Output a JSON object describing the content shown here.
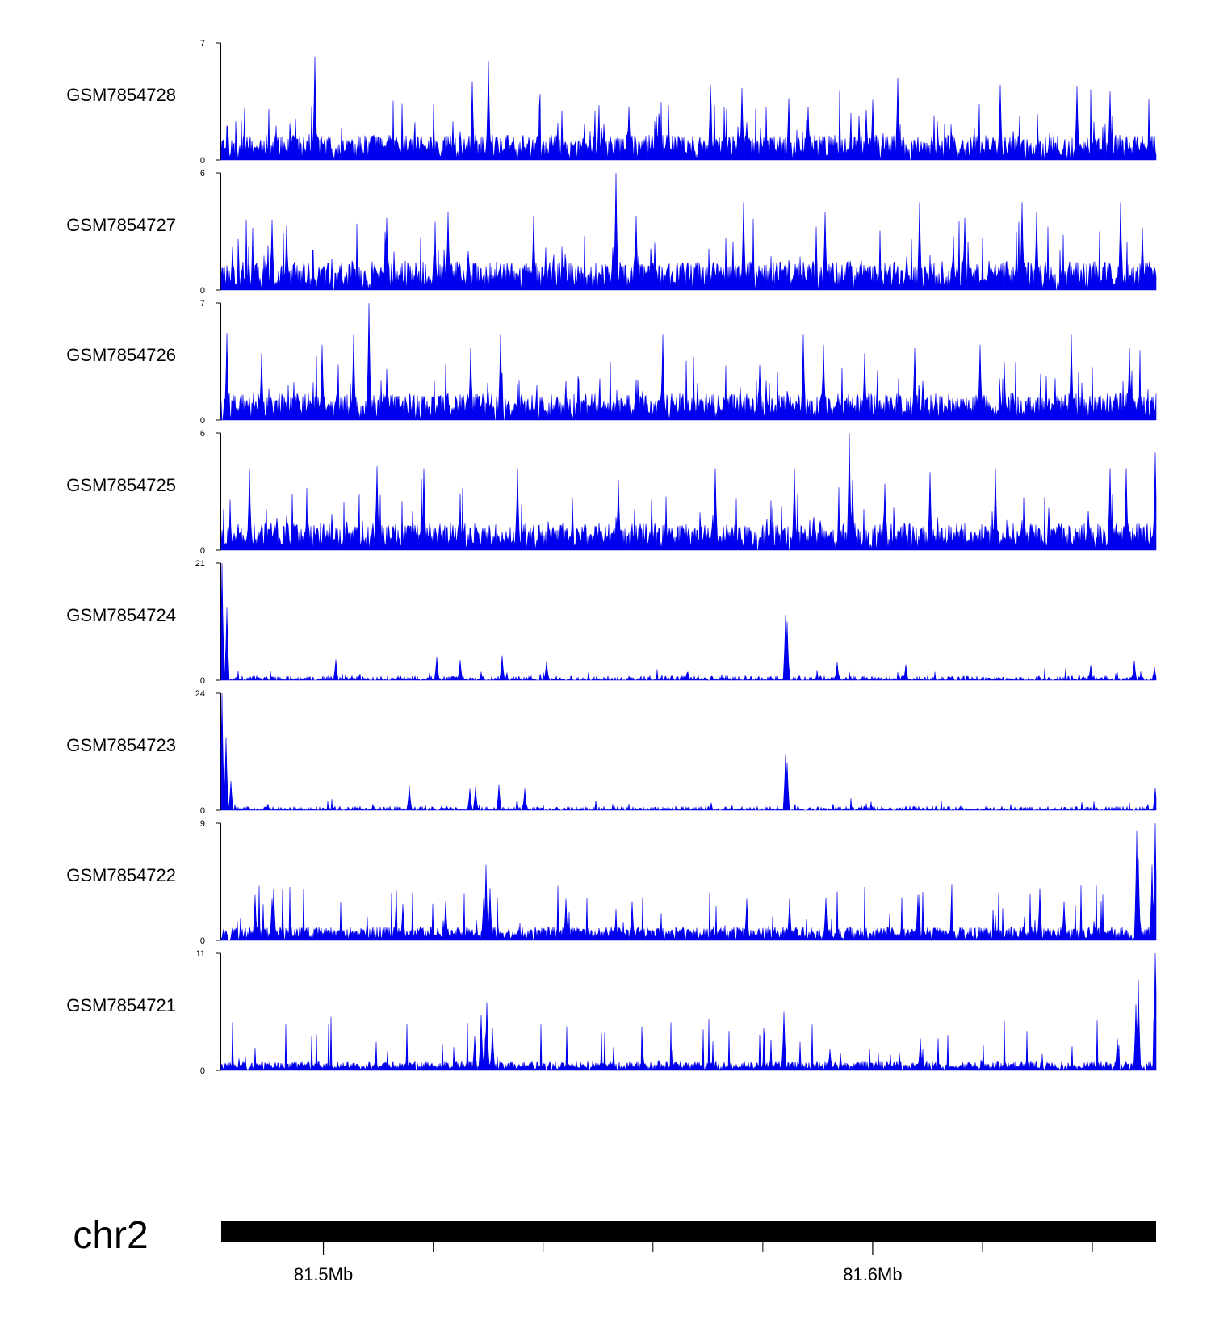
{
  "chart_data": {
    "type": "area",
    "title": "",
    "track_color": "#0000ee",
    "chromosome": "chr2",
    "x_range_mb": [
      81.4814,
      81.6516
    ],
    "x_ticks": [
      {
        "value": 81.5,
        "label": "81.5Mb"
      },
      {
        "value": 81.52
      },
      {
        "value": 81.54
      },
      {
        "value": 81.56
      },
      {
        "value": 81.58
      },
      {
        "value": 81.6,
        "label": "81.6Mb"
      },
      {
        "value": 81.62
      },
      {
        "value": 81.64
      }
    ],
    "series": [
      {
        "name": "GSM7854728",
        "ymax": 7,
        "ymin": 0,
        "profile": "noise",
        "base": 1.3,
        "seed": 11,
        "peaks": [
          [
            81.4985,
            6.2
          ],
          [
            81.5301,
            5.9
          ],
          [
            81.5271,
            4.7
          ],
          [
            81.5556,
            3.2
          ],
          [
            81.5606,
            2.6
          ],
          [
            81.5705,
            4.5
          ],
          [
            81.5762,
            4.3
          ],
          [
            81.5847,
            3.7
          ],
          [
            81.5882,
            3.2
          ],
          [
            81.5989,
            3.0
          ],
          [
            81.6,
            3.6
          ],
          [
            81.6046,
            4.9
          ],
          [
            81.6232,
            4.5
          ],
          [
            81.6372,
            4.4
          ],
          [
            81.6432,
            4.1
          ]
        ]
      },
      {
        "name": "GSM7854727",
        "ymax": 6,
        "ymin": 0,
        "profile": "noise",
        "base": 1.3,
        "seed": 23,
        "peaks": [
          [
            81.4835,
            2.2
          ],
          [
            81.4907,
            3.6
          ],
          [
            81.4933,
            3.3
          ],
          [
            81.5116,
            3.7
          ],
          [
            81.5227,
            4.0
          ],
          [
            81.5383,
            3.8
          ],
          [
            81.5533,
            6.0
          ],
          [
            81.5569,
            3.8
          ],
          [
            81.5765,
            4.5
          ],
          [
            81.5914,
            4.0
          ],
          [
            81.6086,
            4.5
          ],
          [
            81.6168,
            3.7
          ],
          [
            81.6272,
            4.5
          ],
          [
            81.6299,
            4.0
          ],
          [
            81.6452,
            4.5
          ],
          [
            81.6491,
            3.2
          ]
        ]
      },
      {
        "name": "GSM7854726",
        "ymax": 7,
        "ymin": 0,
        "profile": "noise",
        "base": 1.4,
        "seed": 37,
        "peaks": [
          [
            81.4825,
            5.2
          ],
          [
            81.4887,
            4.0
          ],
          [
            81.4998,
            4.5
          ],
          [
            81.5055,
            5.1
          ],
          [
            81.5083,
            7.0
          ],
          [
            81.5268,
            4.3
          ],
          [
            81.5323,
            5.1
          ],
          [
            81.5618,
            5.1
          ],
          [
            81.5794,
            3.3
          ],
          [
            81.5873,
            5.1
          ],
          [
            81.5911,
            4.5
          ],
          [
            81.5986,
            4.0
          ],
          [
            81.6076,
            4.3
          ],
          [
            81.6196,
            4.5
          ],
          [
            81.6362,
            5.1
          ],
          [
            81.6467,
            4.3
          ]
        ]
      },
      {
        "name": "GSM7854725",
        "ymax": 6,
        "ymin": 0,
        "profile": "noise",
        "base": 1.2,
        "seed": 53,
        "peaks": [
          [
            81.4866,
            4.2
          ],
          [
            81.5098,
            4.3
          ],
          [
            81.5183,
            4.2
          ],
          [
            81.5354,
            4.2
          ],
          [
            81.5537,
            3.6
          ],
          [
            81.5714,
            4.2
          ],
          [
            81.5858,
            4.2
          ],
          [
            81.5957,
            6.0
          ],
          [
            81.5964,
            3.6
          ],
          [
            81.6022,
            3.4
          ],
          [
            81.6105,
            4.0
          ],
          [
            81.6224,
            4.2
          ],
          [
            81.6432,
            4.2
          ],
          [
            81.6461,
            4.2
          ],
          [
            81.6514,
            5.0
          ]
        ]
      },
      {
        "name": "GSM7854724",
        "ymax": 21,
        "ymin": 0,
        "profile": "low",
        "base": 0.8,
        "seed": 71,
        "peaks": [
          [
            81.4816,
            21.0
          ],
          [
            81.4824,
            13.0
          ],
          [
            81.5023,
            3.7
          ],
          [
            81.5207,
            4.2
          ],
          [
            81.5249,
            3.6
          ],
          [
            81.5325,
            4.4
          ],
          [
            81.5406,
            3.4
          ],
          [
            81.5841,
            11.7
          ],
          [
            81.5844,
            10.5
          ],
          [
            81.5936,
            3.2
          ],
          [
            81.6061,
            2.8
          ],
          [
            81.6397,
            2.7
          ],
          [
            81.6477,
            3.5
          ],
          [
            81.6513,
            2.3
          ]
        ]
      },
      {
        "name": "GSM7854723",
        "ymax": 24,
        "ymin": 0,
        "profile": "low",
        "base": 0.8,
        "seed": 89,
        "peaks": [
          [
            81.4816,
            24.0
          ],
          [
            81.4823,
            15.0
          ],
          [
            81.4832,
            6.0
          ],
          [
            81.5156,
            5.0
          ],
          [
            81.5267,
            4.4
          ],
          [
            81.5277,
            4.8
          ],
          [
            81.5319,
            5.2
          ],
          [
            81.5366,
            4.4
          ],
          [
            81.5841,
            11.5
          ],
          [
            81.5845,
            9.8
          ],
          [
            81.6514,
            4.5
          ]
        ]
      },
      {
        "name": "GSM7854722",
        "ymax": 9,
        "ymin": 0,
        "profile": "noise",
        "base": 0.9,
        "seed": 97,
        "peaks": [
          [
            81.4875,
            3.5
          ],
          [
            81.4906,
            3.2
          ],
          [
            81.4909,
            4.0
          ],
          [
            81.5144,
            2.8
          ],
          [
            81.5222,
            3.0
          ],
          [
            81.5291,
            3.2
          ],
          [
            81.5296,
            5.8
          ],
          [
            81.5303,
            4.0
          ],
          [
            81.5441,
            3.2
          ],
          [
            81.5562,
            3.0
          ],
          [
            81.5771,
            3.2
          ],
          [
            81.5848,
            3.2
          ],
          [
            81.5915,
            3.3
          ],
          [
            81.6083,
            3.5
          ],
          [
            81.6305,
            4.0
          ],
          [
            81.6348,
            3.0
          ],
          [
            81.6481,
            8.4
          ],
          [
            81.6483,
            6.3
          ],
          [
            81.6509,
            5.8
          ],
          [
            81.6515,
            9.0
          ]
        ]
      },
      {
        "name": "GSM7854721",
        "ymax": 11,
        "ymin": 0,
        "profile": "noise",
        "base": 0.7,
        "seed": 113,
        "peaks": [
          [
            81.5276,
            3.2
          ],
          [
            81.5288,
            5.2
          ],
          [
            81.5298,
            6.4
          ],
          [
            81.5308,
            4.0
          ],
          [
            81.5581,
            2.0
          ],
          [
            81.5839,
            5.5
          ],
          [
            81.5922,
            2.0
          ],
          [
            81.6087,
            3.0
          ],
          [
            81.6445,
            3.0
          ],
          [
            81.6479,
            6.2
          ],
          [
            81.6483,
            8.5
          ],
          [
            81.6514,
            11.0
          ],
          [
            81.6516,
            7.5
          ]
        ]
      }
    ]
  }
}
